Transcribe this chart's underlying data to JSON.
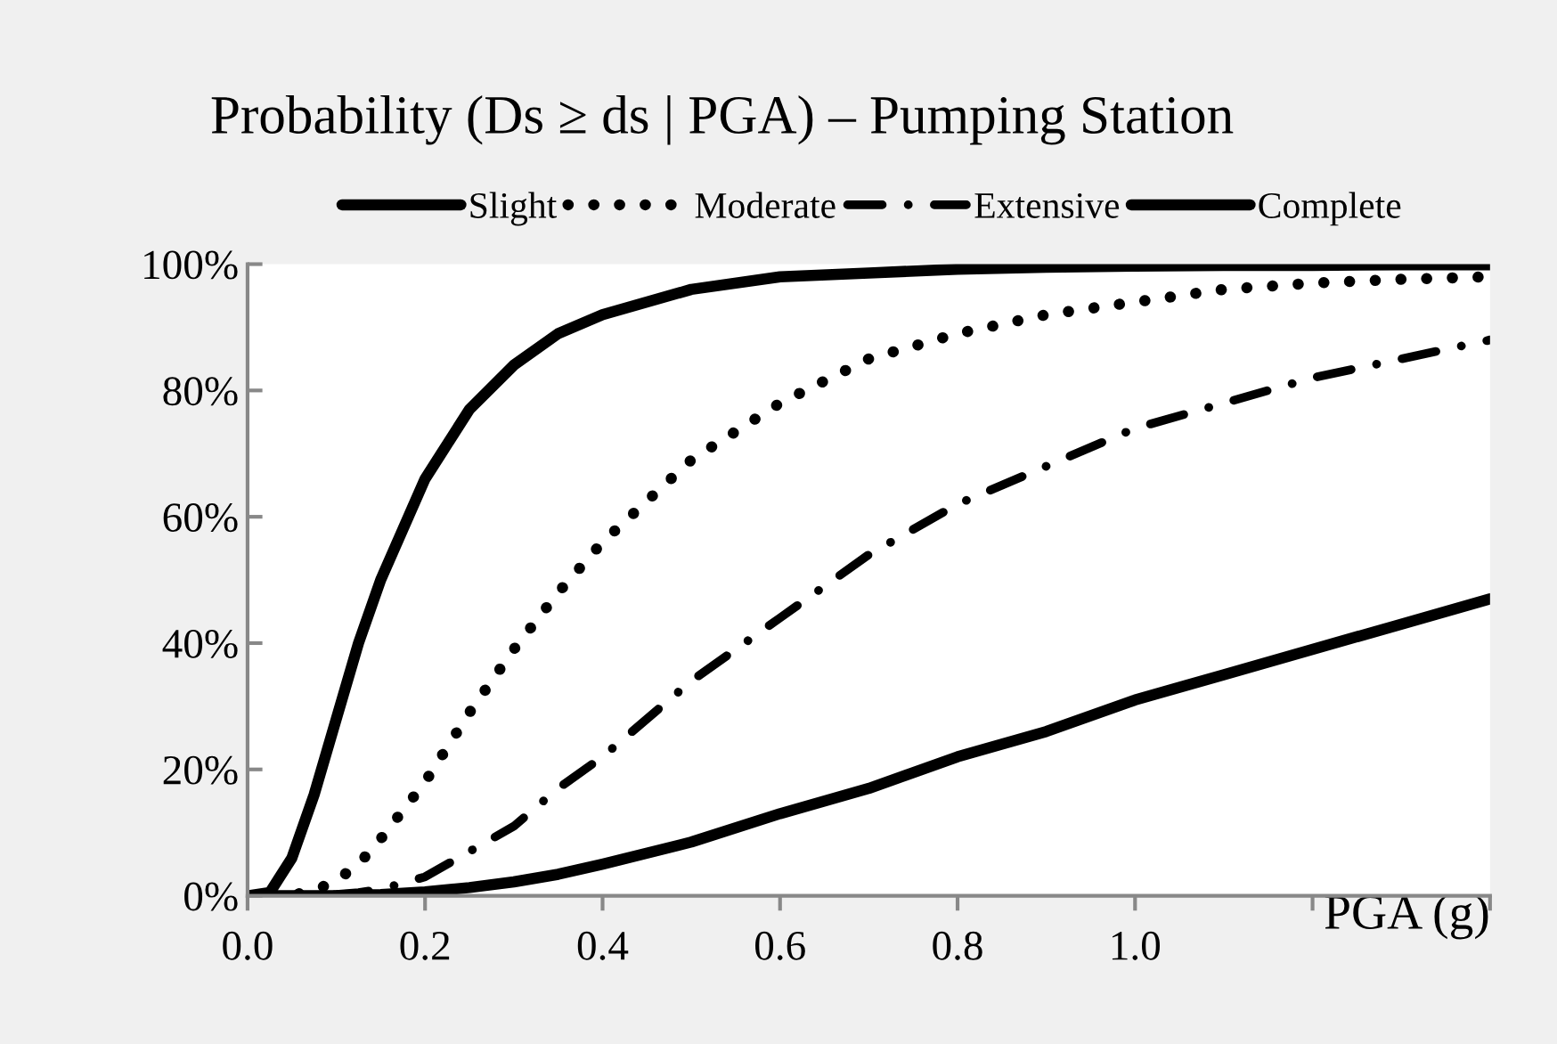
{
  "chart_data": {
    "type": "line",
    "title": "Probability (Ds ≥ ds | PGA) – Pumping Station",
    "xlabel": "PGA (g)",
    "x": [
      0,
      0.025,
      0.05,
      0.075,
      0.1,
      0.125,
      0.15,
      0.2,
      0.25,
      0.3,
      0.35,
      0.4,
      0.5,
      0.6,
      0.7,
      0.8,
      0.9,
      1.0,
      1.1,
      1.2,
      1.3,
      1.4
    ],
    "series": [
      {
        "name": "Slight",
        "color": "#000000",
        "line_style": "solid",
        "values": [
          0,
          0.5,
          6,
          16,
          28,
          40,
          50,
          66,
          77,
          84,
          89,
          92,
          96,
          98,
          98.6,
          99.2,
          99.5,
          99.7,
          99.8,
          99.8,
          99.9,
          99.9
        ]
      },
      {
        "name": "Moderate",
        "color": "#000000",
        "line_style": "dotted",
        "values": [
          0,
          0,
          0.1,
          0.8,
          2.4,
          5,
          9,
          18,
          29,
          39,
          48,
          56,
          69,
          78,
          85,
          89,
          92,
          94,
          96,
          97,
          97.6,
          98
        ]
      },
      {
        "name": "Extensive",
        "color": "#000000",
        "line_style": "dashdot",
        "values": [
          0,
          0,
          0,
          0,
          0.2,
          0.5,
          1,
          3,
          7,
          11,
          17,
          22,
          34,
          44,
          54,
          62,
          68,
          74,
          78,
          82,
          85,
          88
        ]
      },
      {
        "name": "Complete",
        "color": "#000000",
        "line_style": "solid",
        "values": [
          0,
          0,
          0,
          0,
          0,
          0.1,
          0.2,
          0.6,
          1.3,
          2.2,
          3.4,
          5,
          8.5,
          13,
          17,
          22,
          26,
          31,
          35,
          39,
          43,
          47
        ]
      }
    ],
    "xlim": [
      0,
      1.4
    ],
    "xticks": [
      {
        "value": 0,
        "label": "0.0"
      },
      {
        "value": 0.2,
        "label": "0.2"
      },
      {
        "value": 0.4,
        "label": "0.4"
      },
      {
        "value": 0.6,
        "label": "0.6"
      },
      {
        "value": 0.8,
        "label": "0.8"
      },
      {
        "value": 1.0,
        "label": "1.0"
      },
      {
        "value": 1.2,
        "label": null
      },
      {
        "value": 1.4,
        "label": null
      }
    ],
    "ylim": [
      0,
      100
    ],
    "yticks": [
      {
        "value": 0,
        "label": "0%"
      },
      {
        "value": 20,
        "label": "20%"
      },
      {
        "value": 40,
        "label": "40%"
      },
      {
        "value": 60,
        "label": "60%"
      },
      {
        "value": 80,
        "label": "80%"
      },
      {
        "value": 100,
        "label": "100%"
      }
    ],
    "legend": "top",
    "grid": false,
    "marker": "none"
  }
}
